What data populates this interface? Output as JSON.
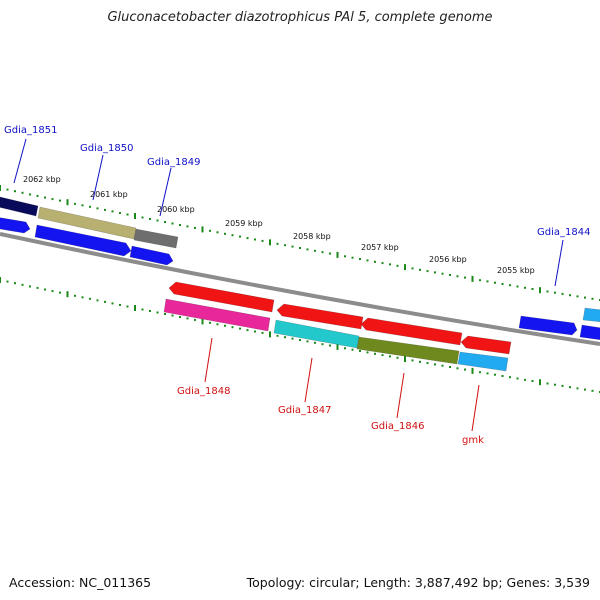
{
  "title": "Gluconacetobacter diazotrophicus PAl 5, complete genome",
  "footer": {
    "accession": "Accession: NC_011365",
    "summary": "Topology: circular; Length: 3,887,492 bp; Genes: 3,539"
  },
  "colors": {
    "ruler_ticks": "#1a8a1a",
    "backbone": "#8c8c8c",
    "label_forward": "#1010c8",
    "label_reverse": "#d01010"
  },
  "ruler_labels": [
    "2062 kbp",
    "2061 kbp",
    "2060 kbp",
    "2059 kbp",
    "2058 kbp",
    "2057 kbp",
    "2056 kbp",
    "2055 kbp"
  ],
  "gene_labels": {
    "forward": [
      "Gdia_1851",
      "Gdia_1850",
      "Gdia_1849",
      "Gdia_1844"
    ],
    "reverse": [
      "Gdia_1848",
      "Gdia_1847",
      "Gdia_1846",
      "gmk"
    ]
  },
  "feature_colors": {
    "forward_cds": "#1414f0",
    "dark_cds": "#0a0a5a",
    "khaki_gene": "#b8b070",
    "gray_gene": "#6e6e6e",
    "reverse_cds": "#f01414",
    "magenta_gene": "#e8289a",
    "cyan_gene": "#22c8cc",
    "olive_gene": "#6e8a1e",
    "lightblue_gene": "#22aaf0"
  }
}
